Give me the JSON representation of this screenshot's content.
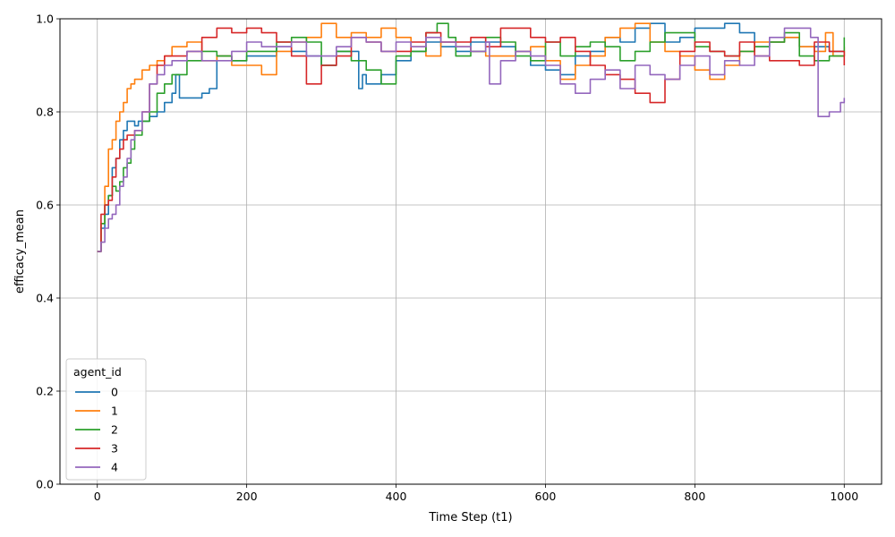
{
  "chart_data": {
    "type": "line",
    "title": "",
    "xlabel": "Time Step (t1)",
    "ylabel": "efficacy_mean",
    "xlim": [
      -50,
      1050
    ],
    "ylim": [
      0.0,
      1.0
    ],
    "xticks": [
      0,
      200,
      400,
      600,
      800,
      1000
    ],
    "yticks": [
      0.0,
      0.2,
      0.4,
      0.6,
      0.8,
      1.0
    ],
    "xtick_labels": [
      "0",
      "200",
      "400",
      "600",
      "800",
      "1000"
    ],
    "ytick_labels": [
      "0.0",
      "0.2",
      "0.4",
      "0.6",
      "0.8",
      "1.0"
    ],
    "grid": true,
    "legend": {
      "title": "agent_id",
      "position": "lower-left"
    },
    "series": [
      {
        "name": "0",
        "color": "#1f77b4",
        "x": [
          0,
          5,
          10,
          15,
          20,
          25,
          30,
          35,
          40,
          45,
          50,
          55,
          60,
          70,
          80,
          90,
          100,
          105,
          110,
          130,
          140,
          150,
          160,
          180,
          200,
          220,
          240,
          260,
          280,
          300,
          320,
          340,
          350,
          355,
          360,
          380,
          400,
          420,
          440,
          460,
          480,
          500,
          520,
          540,
          560,
          580,
          600,
          620,
          640,
          660,
          680,
          700,
          720,
          740,
          760,
          780,
          800,
          820,
          840,
          860,
          880,
          900,
          920,
          940,
          960,
          980,
          1000
        ],
        "y": [
          0.5,
          0.55,
          0.58,
          0.62,
          0.68,
          0.7,
          0.74,
          0.76,
          0.78,
          0.78,
          0.77,
          0.78,
          0.78,
          0.79,
          0.8,
          0.82,
          0.84,
          0.88,
          0.83,
          0.83,
          0.84,
          0.85,
          0.92,
          0.91,
          0.92,
          0.92,
          0.94,
          0.93,
          0.92,
          0.9,
          0.93,
          0.93,
          0.85,
          0.88,
          0.86,
          0.88,
          0.91,
          0.93,
          0.95,
          0.94,
          0.93,
          0.95,
          0.95,
          0.94,
          0.93,
          0.9,
          0.89,
          0.88,
          0.92,
          0.93,
          0.96,
          0.95,
          0.98,
          0.99,
          0.95,
          0.96,
          0.98,
          0.98,
          0.99,
          0.97,
          0.94,
          0.95,
          0.96,
          0.94,
          0.94,
          0.93,
          0.93
        ]
      },
      {
        "name": "1",
        "color": "#ff7f0e",
        "x": [
          0,
          5,
          10,
          15,
          20,
          25,
          30,
          35,
          40,
          45,
          50,
          60,
          70,
          80,
          90,
          100,
          120,
          140,
          160,
          180,
          200,
          220,
          240,
          260,
          280,
          300,
          320,
          340,
          360,
          380,
          400,
          420,
          440,
          460,
          480,
          500,
          520,
          540,
          560,
          580,
          600,
          620,
          640,
          660,
          680,
          700,
          720,
          740,
          760,
          780,
          800,
          820,
          840,
          860,
          880,
          900,
          920,
          940,
          960,
          975,
          985,
          1000
        ],
        "y": [
          0.5,
          0.56,
          0.64,
          0.72,
          0.74,
          0.78,
          0.8,
          0.82,
          0.85,
          0.86,
          0.87,
          0.89,
          0.9,
          0.91,
          0.92,
          0.94,
          0.95,
          0.91,
          0.92,
          0.9,
          0.9,
          0.88,
          0.93,
          0.95,
          0.96,
          0.99,
          0.96,
          0.97,
          0.96,
          0.98,
          0.96,
          0.94,
          0.92,
          0.95,
          0.94,
          0.93,
          0.92,
          0.92,
          0.93,
          0.94,
          0.91,
          0.87,
          0.9,
          0.92,
          0.96,
          0.98,
          0.99,
          0.95,
          0.93,
          0.92,
          0.89,
          0.87,
          0.9,
          0.93,
          0.95,
          0.95,
          0.96,
          0.94,
          0.93,
          0.97,
          0.92,
          0.94
        ]
      },
      {
        "name": "2",
        "color": "#2ca02c",
        "x": [
          0,
          5,
          10,
          15,
          20,
          25,
          30,
          35,
          40,
          45,
          50,
          60,
          70,
          80,
          90,
          100,
          120,
          140,
          160,
          180,
          200,
          220,
          240,
          260,
          280,
          300,
          320,
          340,
          360,
          380,
          400,
          420,
          440,
          455,
          470,
          480,
          500,
          520,
          540,
          560,
          580,
          600,
          620,
          640,
          660,
          680,
          700,
          720,
          740,
          760,
          780,
          800,
          820,
          840,
          860,
          880,
          900,
          920,
          940,
          960,
          980,
          1000
        ],
        "y": [
          0.5,
          0.56,
          0.6,
          0.62,
          0.64,
          0.63,
          0.65,
          0.68,
          0.69,
          0.72,
          0.75,
          0.78,
          0.8,
          0.84,
          0.86,
          0.88,
          0.91,
          0.93,
          0.92,
          0.91,
          0.93,
          0.93,
          0.95,
          0.96,
          0.95,
          0.9,
          0.93,
          0.91,
          0.89,
          0.86,
          0.92,
          0.93,
          0.97,
          0.99,
          0.96,
          0.92,
          0.93,
          0.96,
          0.95,
          0.92,
          0.91,
          0.95,
          0.92,
          0.94,
          0.95,
          0.94,
          0.91,
          0.93,
          0.95,
          0.97,
          0.97,
          0.94,
          0.93,
          0.92,
          0.93,
          0.94,
          0.95,
          0.97,
          0.92,
          0.91,
          0.92,
          0.96
        ]
      },
      {
        "name": "3",
        "color": "#d62728",
        "x": [
          0,
          5,
          10,
          15,
          20,
          25,
          30,
          35,
          40,
          45,
          50,
          60,
          70,
          80,
          90,
          100,
          120,
          140,
          160,
          180,
          200,
          220,
          240,
          260,
          280,
          300,
          320,
          340,
          360,
          380,
          400,
          420,
          440,
          460,
          480,
          500,
          520,
          540,
          560,
          580,
          600,
          620,
          640,
          660,
          680,
          700,
          720,
          740,
          760,
          780,
          800,
          820,
          840,
          860,
          880,
          900,
          920,
          940,
          960,
          980,
          1000
        ],
        "y": [
          0.5,
          0.58,
          0.6,
          0.61,
          0.66,
          0.7,
          0.72,
          0.74,
          0.75,
          0.75,
          0.76,
          0.8,
          0.86,
          0.9,
          0.92,
          0.92,
          0.93,
          0.96,
          0.98,
          0.97,
          0.98,
          0.97,
          0.95,
          0.92,
          0.86,
          0.9,
          0.92,
          0.96,
          0.95,
          0.93,
          0.93,
          0.95,
          0.97,
          0.95,
          0.95,
          0.96,
          0.94,
          0.98,
          0.98,
          0.96,
          0.95,
          0.96,
          0.93,
          0.9,
          0.88,
          0.87,
          0.84,
          0.82,
          0.87,
          0.93,
          0.95,
          0.93,
          0.92,
          0.95,
          0.92,
          0.91,
          0.91,
          0.9,
          0.95,
          0.93,
          0.9
        ]
      },
      {
        "name": "4",
        "color": "#9467bd",
        "x": [
          0,
          5,
          10,
          15,
          20,
          25,
          30,
          35,
          40,
          45,
          50,
          60,
          70,
          80,
          90,
          100,
          120,
          140,
          160,
          180,
          200,
          220,
          240,
          260,
          280,
          300,
          320,
          340,
          360,
          380,
          400,
          420,
          440,
          460,
          480,
          500,
          520,
          525,
          540,
          560,
          580,
          600,
          620,
          640,
          660,
          680,
          700,
          720,
          740,
          760,
          780,
          800,
          820,
          840,
          860,
          880,
          900,
          920,
          940,
          955,
          965,
          980,
          995,
          1000
        ],
        "y": [
          0.5,
          0.52,
          0.55,
          0.57,
          0.58,
          0.6,
          0.64,
          0.66,
          0.7,
          0.74,
          0.76,
          0.8,
          0.86,
          0.88,
          0.9,
          0.91,
          0.93,
          0.91,
          0.91,
          0.93,
          0.95,
          0.94,
          0.94,
          0.95,
          0.92,
          0.92,
          0.94,
          0.96,
          0.95,
          0.93,
          0.95,
          0.94,
          0.96,
          0.95,
          0.94,
          0.93,
          0.95,
          0.86,
          0.91,
          0.93,
          0.92,
          0.9,
          0.86,
          0.84,
          0.87,
          0.89,
          0.85,
          0.9,
          0.88,
          0.87,
          0.9,
          0.92,
          0.88,
          0.91,
          0.9,
          0.92,
          0.96,
          0.98,
          0.98,
          0.96,
          0.79,
          0.8,
          0.82,
          0.83
        ]
      }
    ]
  }
}
